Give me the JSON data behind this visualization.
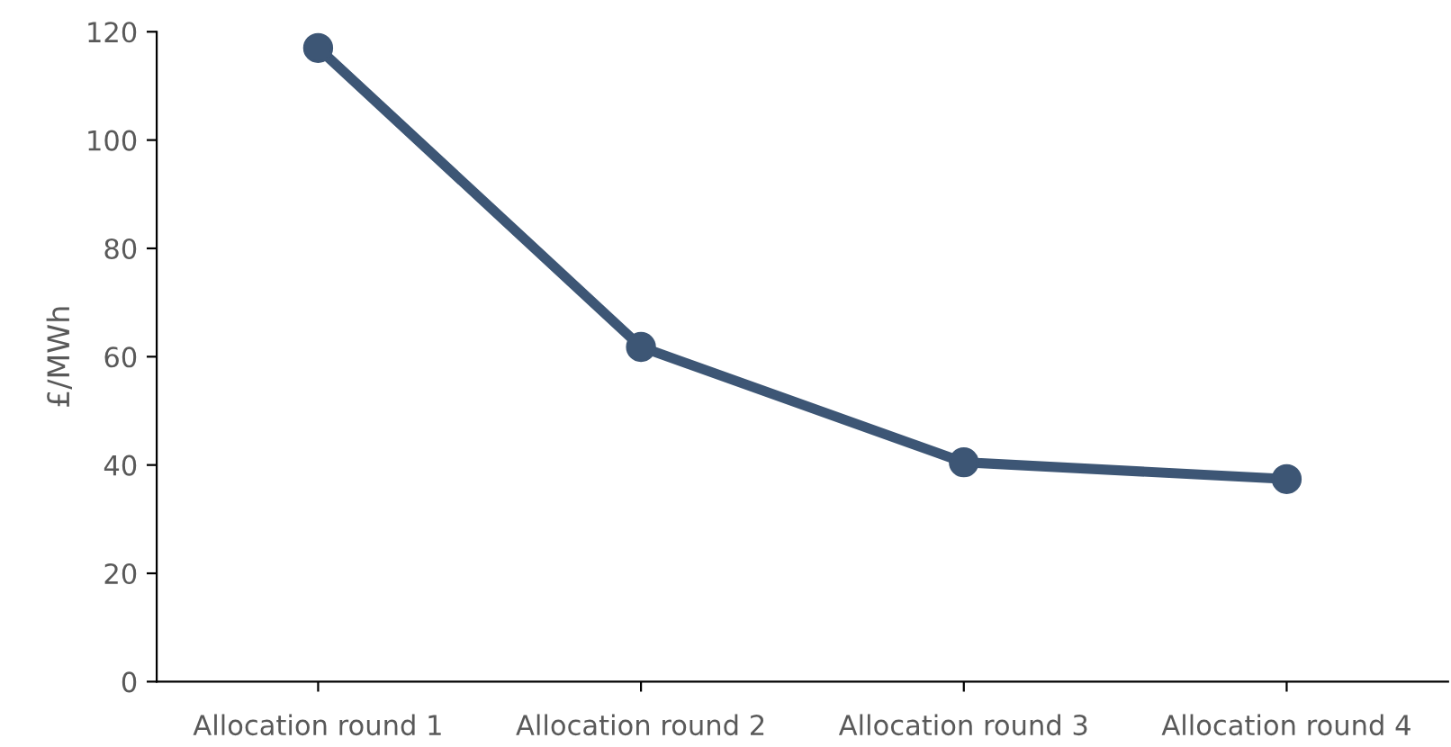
{
  "chart_data": {
    "type": "line",
    "ylabel": "£/MWh",
    "categories": [
      "Allocation round 1",
      "Allocation round 2",
      "Allocation round 3",
      "Allocation round 4"
    ],
    "series": [
      {
        "color": "#3d5675",
        "values": [
          117,
          61.8,
          40.5,
          37.4
        ]
      }
    ],
    "ylim": [
      0,
      120
    ],
    "yticks": [
      0,
      20,
      40,
      60,
      80,
      100,
      120
    ],
    "marker": "circle",
    "line_style": "solid",
    "grid": false,
    "legend": false
  }
}
